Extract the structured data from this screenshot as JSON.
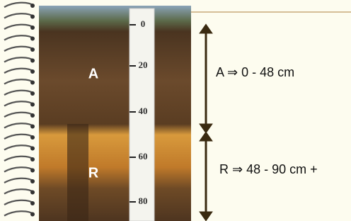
{
  "photo": {
    "horizon_labels": [
      "A",
      "R"
    ],
    "ruler_ticks": [
      "0",
      "20",
      "40",
      "60",
      "80"
    ]
  },
  "horizons": [
    {
      "text": "A ⇒ 0 - 48 cm"
    },
    {
      "text": "R ⇒ 48 - 90 cm +"
    }
  ]
}
